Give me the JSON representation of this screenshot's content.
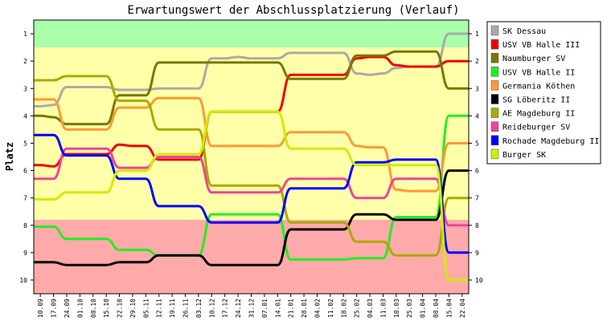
{
  "chart_data": {
    "type": "line",
    "title": "Erwartungswert der Abschlussplatzierung (Verlauf)",
    "ylabel": "Platz",
    "xlabel": "",
    "ylim": [
      0.5,
      10.5
    ],
    "y_inverted": true,
    "y_ticks": [
      "1",
      "2",
      "3",
      "4",
      "5",
      "6",
      "7",
      "8",
      "9",
      "10"
    ],
    "x": [
      "10.09",
      "17.09",
      "24.09",
      "01.10",
      "08.10",
      "15.10",
      "22.10",
      "29.10",
      "05.11",
      "12.11",
      "19.11",
      "26.11",
      "03.12",
      "10.12",
      "17.12",
      "24.12",
      "31.12",
      "07.01",
      "14.01",
      "21.01",
      "28.01",
      "04.02",
      "11.02",
      "18.02",
      "25.02",
      "04.03",
      "11.03",
      "18.03",
      "25.03",
      "01.04",
      "08.04",
      "15.04",
      "22.04"
    ],
    "zones": [
      {
        "from": 0.5,
        "to": 1.5,
        "color": "#aaffaa"
      },
      {
        "from": 1.5,
        "to": 7.8,
        "color": "#ffffaa"
      },
      {
        "from": 7.8,
        "to": 10.5,
        "color": "#ffaaaa"
      }
    ],
    "legend_position": "right",
    "grid": false,
    "series": [
      {
        "name": "SK Dessau",
        "color": "#aaaaaa",
        "values": [
          3.65,
          3.6,
          2.95,
          2.95,
          2.95,
          2.95,
          3.05,
          3.05,
          3.05,
          3.0,
          3.0,
          3.0,
          3.0,
          1.9,
          1.9,
          1.85,
          1.9,
          1.9,
          1.9,
          1.7,
          1.7,
          1.7,
          1.7,
          1.7,
          2.45,
          2.5,
          2.45,
          2.25,
          2.2,
          2.2,
          2.2,
          1.0,
          1.0
        ]
      },
      {
        "name": "USV VB Halle III",
        "color": "#ee0000",
        "values": [
          5.8,
          5.85,
          5.4,
          5.4,
          5.4,
          5.4,
          5.05,
          5.1,
          5.1,
          5.6,
          5.6,
          5.6,
          5.6,
          3.85,
          3.85,
          3.85,
          3.85,
          3.85,
          3.85,
          2.5,
          2.5,
          2.5,
          2.5,
          2.5,
          1.9,
          1.85,
          1.85,
          2.15,
          2.2,
          2.2,
          2.2,
          2.0,
          2.0
        ]
      },
      {
        "name": "Naumburger SV",
        "color": "#777700",
        "values": [
          4.0,
          4.05,
          4.3,
          4.3,
          4.3,
          4.3,
          3.25,
          3.25,
          3.25,
          2.05,
          2.05,
          2.05,
          2.05,
          2.05,
          2.05,
          2.05,
          2.05,
          2.05,
          2.05,
          2.65,
          2.65,
          2.65,
          2.65,
          2.65,
          1.8,
          1.8,
          1.8,
          1.65,
          1.65,
          1.65,
          1.65,
          3.0,
          3.0
        ]
      },
      {
        "name": "USV VB Halle II",
        "color": "#22ee22",
        "values": [
          8.05,
          8.05,
          8.5,
          8.5,
          8.5,
          8.5,
          8.9,
          8.9,
          8.9,
          9.1,
          9.1,
          9.1,
          9.1,
          7.6,
          7.6,
          7.6,
          7.6,
          7.6,
          7.6,
          9.25,
          9.25,
          9.25,
          9.25,
          9.25,
          9.2,
          9.2,
          9.2,
          7.7,
          7.7,
          7.7,
          7.7,
          4.0,
          4.0
        ]
      },
      {
        "name": "Germania Köthen",
        "color": "#ff9933",
        "values": [
          3.4,
          3.4,
          4.5,
          4.5,
          4.5,
          4.5,
          3.7,
          3.7,
          3.7,
          3.35,
          3.35,
          3.35,
          3.35,
          5.1,
          5.1,
          5.1,
          5.1,
          5.1,
          5.1,
          4.6,
          4.6,
          4.6,
          4.6,
          4.6,
          5.1,
          5.15,
          5.15,
          6.7,
          6.75,
          6.75,
          6.75,
          5.0,
          5.0
        ]
      },
      {
        "name": "SG Löberitz II",
        "color": "#000000",
        "values": [
          9.35,
          9.35,
          9.45,
          9.45,
          9.45,
          9.45,
          9.35,
          9.35,
          9.35,
          9.1,
          9.1,
          9.1,
          9.1,
          9.45,
          9.45,
          9.45,
          9.45,
          9.45,
          9.45,
          8.15,
          8.15,
          8.15,
          8.15,
          8.15,
          7.6,
          7.6,
          7.6,
          7.8,
          7.8,
          7.8,
          7.8,
          6.0,
          6.0
        ]
      },
      {
        "name": "AE Magdeburg II",
        "color": "#aaaa00",
        "values": [
          2.7,
          2.7,
          2.55,
          2.55,
          2.55,
          2.55,
          3.45,
          3.45,
          3.45,
          4.5,
          4.5,
          4.5,
          4.5,
          6.55,
          6.55,
          6.55,
          6.55,
          6.55,
          6.55,
          7.9,
          7.9,
          7.9,
          7.9,
          7.9,
          8.6,
          8.6,
          8.6,
          9.1,
          9.1,
          9.1,
          9.1,
          7.0,
          7.0
        ]
      },
      {
        "name": "Reideburger SV",
        "color": "#ee4499",
        "values": [
          6.3,
          6.3,
          5.2,
          5.2,
          5.2,
          5.2,
          5.9,
          5.9,
          5.9,
          5.5,
          5.5,
          5.5,
          5.5,
          6.8,
          6.8,
          6.8,
          6.8,
          6.8,
          6.8,
          6.3,
          6.3,
          6.3,
          6.3,
          6.3,
          7.0,
          7.0,
          7.0,
          6.3,
          6.3,
          6.3,
          6.3,
          8.0,
          8.0
        ]
      },
      {
        "name": "Rochade Magdeburg II",
        "color": "#0000ff",
        "values": [
          4.7,
          4.7,
          5.45,
          5.45,
          5.45,
          5.45,
          6.3,
          6.3,
          6.3,
          7.3,
          7.3,
          7.3,
          7.3,
          7.9,
          7.9,
          7.9,
          7.9,
          7.9,
          7.9,
          6.65,
          6.65,
          6.65,
          6.65,
          6.65,
          5.7,
          5.7,
          5.7,
          5.6,
          5.6,
          5.6,
          5.6,
          9.0,
          9.0
        ]
      },
      {
        "name": "Burger SK",
        "color": "#ccee00",
        "values": [
          7.05,
          7.05,
          6.8,
          6.8,
          6.8,
          6.8,
          6.0,
          6.0,
          6.0,
          5.4,
          5.4,
          5.4,
          5.4,
          3.85,
          3.85,
          3.85,
          3.85,
          3.85,
          3.85,
          5.2,
          5.2,
          5.2,
          5.2,
          5.2,
          5.8,
          5.8,
          5.8,
          5.8,
          5.8,
          5.8,
          5.8,
          10.0,
          10.0
        ]
      }
    ]
  }
}
